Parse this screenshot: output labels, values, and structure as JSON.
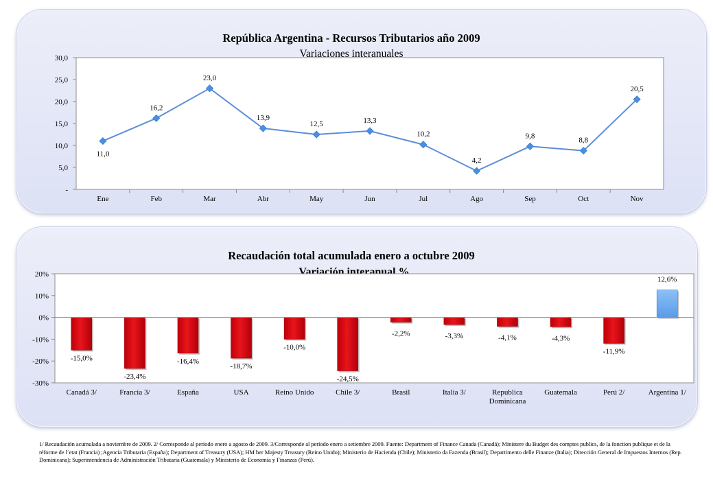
{
  "chart_data": [
    {
      "type": "line",
      "title": "República Argentina - Recursos Tributarios  año 2009",
      "subtitle": "Variaciones interanuales",
      "categories": [
        "Ene",
        "Feb",
        "Mar",
        "Abr",
        "May",
        "Jun",
        "Jul",
        "Ago",
        "Sep",
        "Oct",
        "Nov"
      ],
      "values": [
        11.0,
        16.2,
        23.0,
        13.9,
        12.5,
        13.3,
        10.2,
        4.2,
        9.8,
        8.8,
        20.5
      ],
      "value_labels": [
        "11,0",
        "16,2",
        "23,0",
        "13,9",
        "12,5",
        "13,3",
        "10,2",
        "4,2",
        "9,8",
        "8,8",
        "20,5"
      ],
      "ylim": [
        0,
        30
      ],
      "yticks": [
        "-",
        "5,0",
        "10,0",
        "15,0",
        "20,0",
        "25,0",
        "30,0"
      ],
      "grid": false,
      "legend": "none",
      "color": "#5b8fdb",
      "marker_color": "#4a90e2"
    },
    {
      "type": "bar",
      "title": "Recaudación total acumulada enero a octubre 2009",
      "subtitle": "Variación interanual  %",
      "categories": [
        "Canadá 3/",
        "Francia 3/",
        "España",
        "USA",
        "Reino Unido",
        "Chile 3/",
        "Brasil",
        "Italia 3/",
        "Republica Dominicana",
        "Guatemala",
        "Perú 2/",
        "Argentina  1/"
      ],
      "category_lines": [
        [
          "Canadá 3/"
        ],
        [
          "Francia 3/"
        ],
        [
          "España"
        ],
        [
          "USA"
        ],
        [
          "Reino Unido"
        ],
        [
          "Chile 3/"
        ],
        [
          "Brasil"
        ],
        [
          "Italia 3/"
        ],
        [
          "Republica",
          "Dominicana"
        ],
        [
          "Guatemala"
        ],
        [
          "Perú 2/"
        ],
        [
          "Argentina  1/"
        ]
      ],
      "values": [
        -15.0,
        -23.4,
        -16.4,
        -18.7,
        -10.0,
        -24.5,
        -2.2,
        -3.3,
        -4.1,
        -4.3,
        -11.9,
        12.6
      ],
      "value_labels": [
        "-15,0%",
        "-23,4%",
        "-16,4%",
        "-18,7%",
        "-10,0%",
        "-24,5%",
        "-2,2%",
        "-3,3%",
        "-4,1%",
        "-4,3%",
        "-11,9%",
        "12,6%"
      ],
      "ylim": [
        -30,
        20
      ],
      "yticks": [
        "-30%",
        "-20%",
        "-10%",
        "0%",
        "10%",
        "20%"
      ],
      "grid": false,
      "legend": "none",
      "negative_color": "#e8141c",
      "highlight_color": "#5a9be8"
    }
  ],
  "footnote": "1/ Recaudación acumulada a noviembre de 2009. 2/ Corresponde al período enero a agosto de 2009. 3/Corresponde al período enero a setiembre 2009. Fuente: Department of Finance Canada (Canadá); Ministere du Budget des comptes publics, de la fonction publique et de la réforme de l´etat (Francia) ;Agencia Tributaria (España); Department of Treasury (USA); HM her Majesty Treasury (Reino Unido); Ministerio de Hacienda (Chile); Ministerio da Fazenda (Brasil); Departimento delle Finanze (Italia);  Dirección General de Impuestos Internos (Rep. Dominicana); Superintendencia de Administración Tributaria (Guatemala) y Ministerio de Economía y Finanzas (Perú)."
}
